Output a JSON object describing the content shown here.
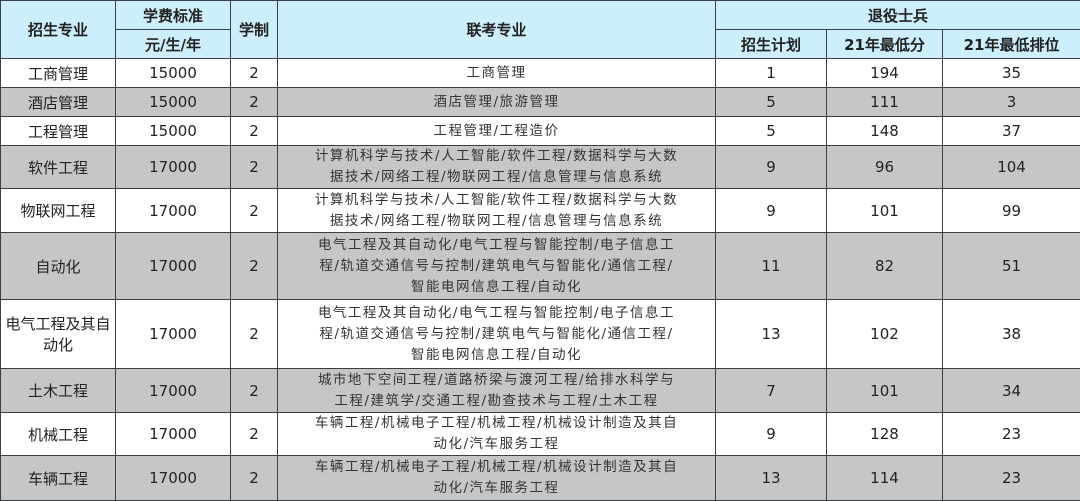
{
  "header": {
    "major": "招生专业",
    "fee": "学费标准",
    "fee_unit": "元/生/年",
    "years": "学制",
    "exam_majors": "联考专业",
    "veterans": "退役士兵",
    "plan": "招生计划",
    "min_score": "21年最低分",
    "min_rank": "21年最低排位"
  },
  "rows": [
    {
      "major": "工商管理",
      "fee": "15000",
      "years": "2",
      "exam": [
        "工商管理"
      ],
      "plan": "1",
      "score": "194",
      "rank": "35"
    },
    {
      "major": "酒店管理",
      "fee": "15000",
      "years": "2",
      "exam": [
        "酒店管理/旅游管理"
      ],
      "plan": "5",
      "score": "111",
      "rank": "3"
    },
    {
      "major": "工程管理",
      "fee": "15000",
      "years": "2",
      "exam": [
        "工程管理/工程造价"
      ],
      "plan": "5",
      "score": "148",
      "rank": "37"
    },
    {
      "major": "软件工程",
      "fee": "17000",
      "years": "2",
      "exam": [
        "计算机科学与技术/人工智能/软件工程/数据科学与大数",
        "据技术/网络工程/物联网工程/信息管理与信息系统"
      ],
      "plan": "9",
      "score": "96",
      "rank": "104"
    },
    {
      "major": "物联网工程",
      "fee": "17000",
      "years": "2",
      "exam": [
        "计算机科学与技术/人工智能/软件工程/数据科学与大数",
        "据技术/网络工程/物联网工程/信息管理与信息系统"
      ],
      "plan": "9",
      "score": "101",
      "rank": "99"
    },
    {
      "major": "自动化",
      "fee": "17000",
      "years": "2",
      "exam": [
        "电气工程及其自动化/电气工程与智能控制/电子信息工",
        "程/轨道交通信号与控制/建筑电气与智能化/通信工程/",
        "智能电网信息工程/自动化"
      ],
      "plan": "11",
      "score": "82",
      "rank": "51"
    },
    {
      "major": "电气工程及其自动化",
      "fee": "17000",
      "years": "2",
      "exam": [
        "电气工程及其自动化/电气工程与智能控制/电子信息工",
        "程/轨道交通信号与控制/建筑电气与智能化/通信工程/",
        "智能电网信息工程/自动化"
      ],
      "plan": "13",
      "score": "102",
      "rank": "38"
    },
    {
      "major": "土木工程",
      "fee": "17000",
      "years": "2",
      "exam": [
        "城市地下空间工程/道路桥梁与渡河工程/给排水科学与",
        "工程/建筑学/交通工程/勘查技术与工程/土木工程"
      ],
      "plan": "7",
      "score": "101",
      "rank": "34"
    },
    {
      "major": "机械工程",
      "fee": "17000",
      "years": "2",
      "exam": [
        "车辆工程/机械电子工程/机械工程/机械设计制造及其自",
        "动化/汽车服务工程"
      ],
      "plan": "9",
      "score": "128",
      "rank": "23"
    },
    {
      "major": "车辆工程",
      "fee": "17000",
      "years": "2",
      "exam": [
        "车辆工程/机械电子工程/机械工程/机械设计制造及其自",
        "动化/汽车服务工程"
      ],
      "plan": "13",
      "score": "114",
      "rank": "23"
    }
  ]
}
